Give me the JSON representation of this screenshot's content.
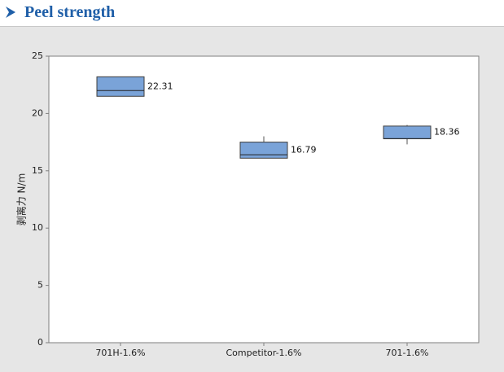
{
  "page": {
    "heading": "Peel strength",
    "arrow_icon": "arrowhead-bullet-icon",
    "heading_color": "#1f5fa8"
  },
  "chart_data": {
    "type": "box",
    "title": "",
    "xlabel": "",
    "ylabel": "剥离力 N/m",
    "ylim": [
      0,
      25
    ],
    "yticks": [
      0,
      5,
      10,
      15,
      20,
      25
    ],
    "grid": false,
    "box_color": "#7aa3d8",
    "categories": [
      "701H-1.6%",
      "Competitor-1.6%",
      "701-1.6%"
    ],
    "boxes": [
      {
        "category": "701H-1.6%",
        "min": 21.5,
        "q1": 21.5,
        "median": 22.0,
        "q3": 23.2,
        "max": 23.2,
        "label": "22.31"
      },
      {
        "category": "Competitor-1.6%",
        "min": 16.1,
        "q1": 16.1,
        "median": 16.4,
        "q3": 17.5,
        "max": 18.0,
        "label": "16.79"
      },
      {
        "category": "701-1.6%",
        "min": 17.3,
        "q1": 17.8,
        "median": 17.8,
        "q3": 18.9,
        "max": 19.0,
        "label": "18.36"
      }
    ]
  }
}
